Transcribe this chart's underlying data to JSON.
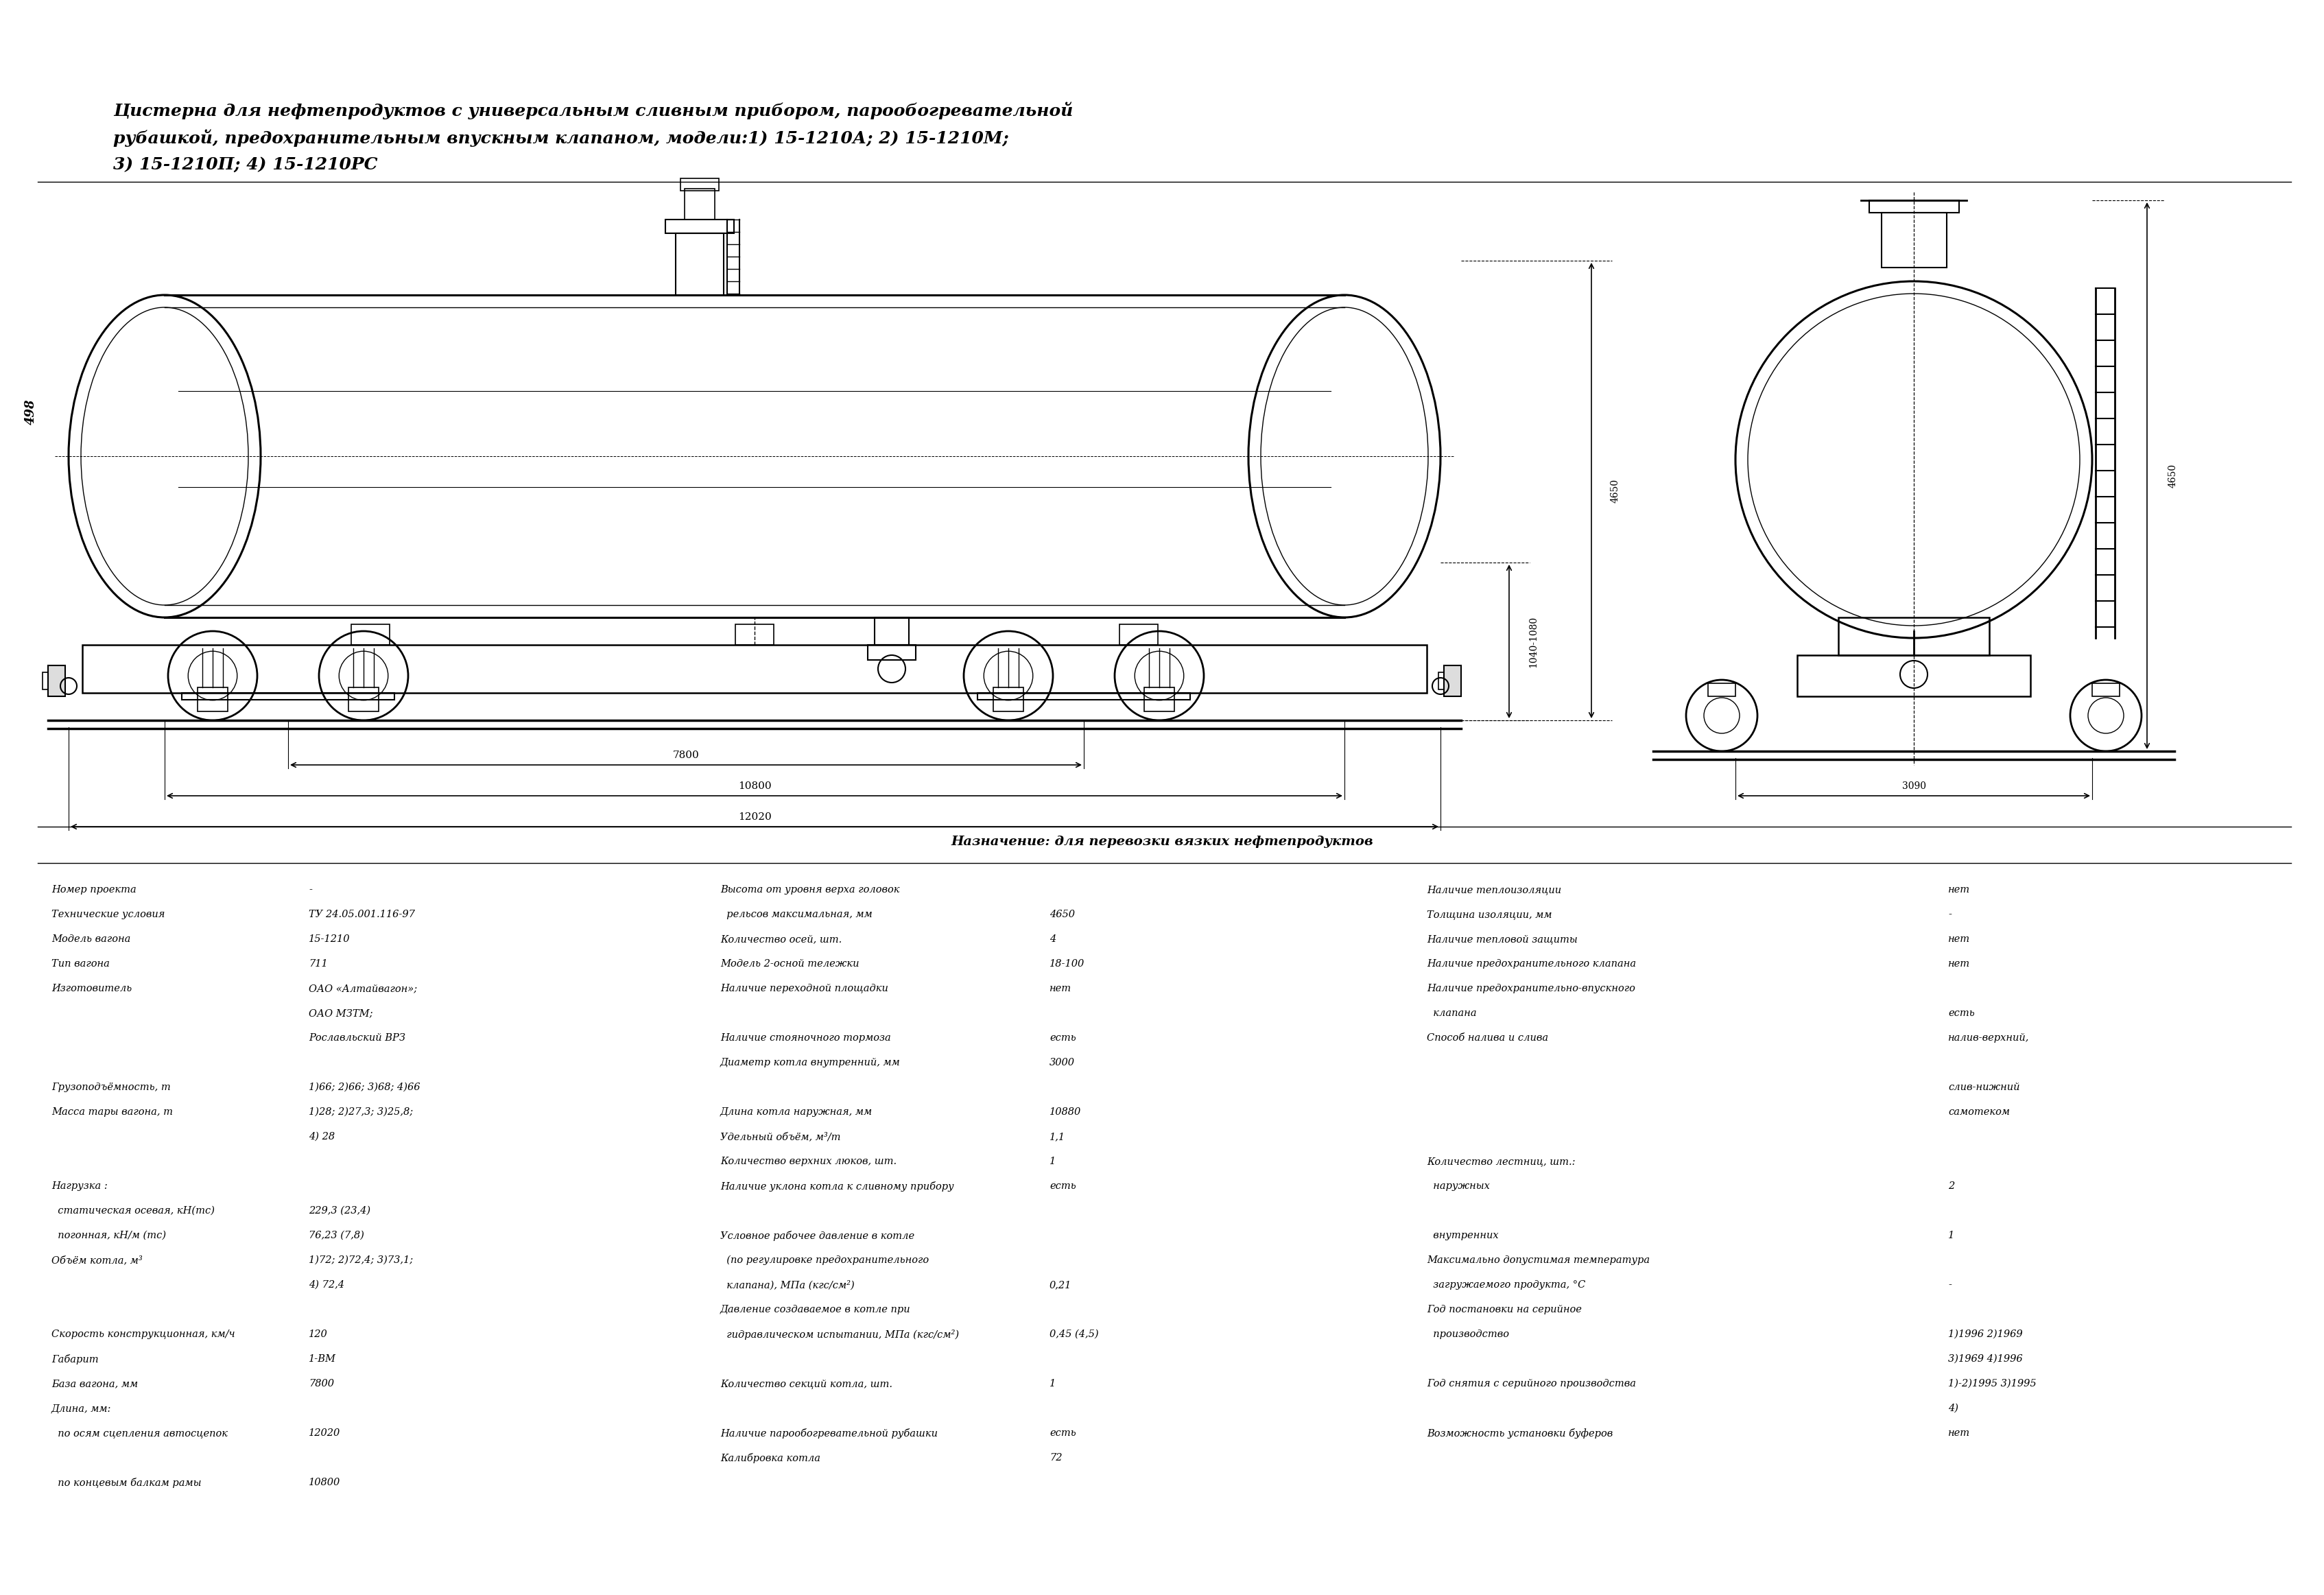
{
  "title_line1": "Цистерна для нефтепродуктов с универсальным сливным прибором, парообогревательной",
  "title_line2": "рубашкой, предохранительным впускным клапаном, модели:1) 15-1210А; 2) 15-1210М;",
  "title_line3": "3) 15-1210П; 4) 15-1210РС",
  "purpose": "Назначение: для перевозки вязких нефтепродуктов",
  "page_num": "498",
  "bg_color": "#ffffff",
  "col1_data": [
    [
      "Номер проекта",
      "-"
    ],
    [
      "Технические условия",
      "ТУ 24.05.001.116-97"
    ],
    [
      "Модель вагона",
      "15-1210"
    ],
    [
      "Тип вагона",
      "711"
    ],
    [
      "Изготовитель",
      "ОАО «Алтайвагон»;"
    ],
    [
      "",
      "ОАО МЗТМ;"
    ],
    [
      "",
      "Рославльский ВРЗ"
    ],
    [
      "",
      ""
    ],
    [
      "Грузоподъёмность, т",
      "1)66; 2)66; 3)68; 4)66"
    ],
    [
      "Масса тары вагона, т",
      "1)28; 2)27,3; 3)25,8;"
    ],
    [
      "",
      "4) 28"
    ],
    [
      "",
      ""
    ],
    [
      "Нагрузка :",
      ""
    ],
    [
      "  статическая осевая, кН(тс)",
      "229,3 (23,4)"
    ],
    [
      "  погонная, кН/м (тс)",
      "76,23 (7,8)"
    ],
    [
      "Объём котла, м³",
      "1)72; 2)72,4; 3)73,1;"
    ],
    [
      "",
      "4) 72,4"
    ],
    [
      "",
      ""
    ],
    [
      "Скорость конструкционная, км/ч",
      "120"
    ],
    [
      "Габарит",
      "1-ВМ"
    ],
    [
      "База вагона, мм",
      "7800"
    ],
    [
      "Длина, мм:",
      ""
    ],
    [
      "  по осям сцепления автосцепок",
      "12020"
    ],
    [
      "",
      ""
    ],
    [
      "  по концевым балкам рамы",
      "10800"
    ]
  ],
  "col2_data": [
    [
      "Высота от уровня верха головок",
      ""
    ],
    [
      "  рельсов максимальная, мм",
      "4650"
    ],
    [
      "Количество осей, шт.",
      "4"
    ],
    [
      "Модель 2-осной тележки",
      "18-100"
    ],
    [
      "Наличие переходной площадки",
      "нет"
    ],
    [
      "",
      ""
    ],
    [
      "Наличие стояночного тормоза",
      "есть"
    ],
    [
      "Диаметр котла внутренний, мм",
      "3000"
    ],
    [
      "",
      ""
    ],
    [
      "Длина котла наружная, мм",
      "10880"
    ],
    [
      "Удельный объём, м³/т",
      "1,1"
    ],
    [
      "Количество верхних люков, шт.",
      "1"
    ],
    [
      "Наличие уклона котла к сливному прибору",
      "есть"
    ],
    [
      "",
      ""
    ],
    [
      "Условное рабочее давление в котле",
      ""
    ],
    [
      "  (по регулировке предохранительного",
      ""
    ],
    [
      "  клапана), МПа (кгс/см²)",
      "0,21"
    ],
    [
      "Давление создаваемое в котле при",
      ""
    ],
    [
      "  гидравлическом испытании, МПа (кгс/см²)",
      "0,45 (4,5)"
    ],
    [
      "",
      ""
    ],
    [
      "Количество секций котла, шт.",
      "1"
    ],
    [
      "",
      ""
    ],
    [
      "Наличие парообогревательной рубашки",
      "есть"
    ],
    [
      "Калибровка котла",
      "72"
    ]
  ],
  "col3_data": [
    [
      "Наличие теплоизоляции",
      "нет"
    ],
    [
      "Толщина изоляции, мм",
      "-"
    ],
    [
      "Наличие тепловой защиты",
      "нет"
    ],
    [
      "Наличие предохранительного клапана",
      "нет"
    ],
    [
      "Наличие предохранительно-впускного",
      ""
    ],
    [
      "  клапана",
      "есть"
    ],
    [
      "Способ налива и слива",
      "налив-верхний,"
    ],
    [
      "",
      ""
    ],
    [
      "",
      "слив-нижний"
    ],
    [
      "",
      "самотеком"
    ],
    [
      "",
      ""
    ],
    [
      "Количество лестниц, шт.:",
      ""
    ],
    [
      "  наружных",
      "2"
    ],
    [
      "",
      ""
    ],
    [
      "  внутренних",
      "1"
    ],
    [
      "Максимально допустимая температура",
      ""
    ],
    [
      "  загружаемого продукта, °С",
      "-"
    ],
    [
      "Год постановки на серийное",
      ""
    ],
    [
      "  производство",
      "1)1996 2)1969"
    ],
    [
      "",
      "3)1969 4)1996"
    ],
    [
      "Год снятия с серийного производства",
      "1)-2)1995 3)1995"
    ],
    [
      "",
      "4)"
    ],
    [
      "Возможность установки буферов",
      "нет"
    ]
  ]
}
